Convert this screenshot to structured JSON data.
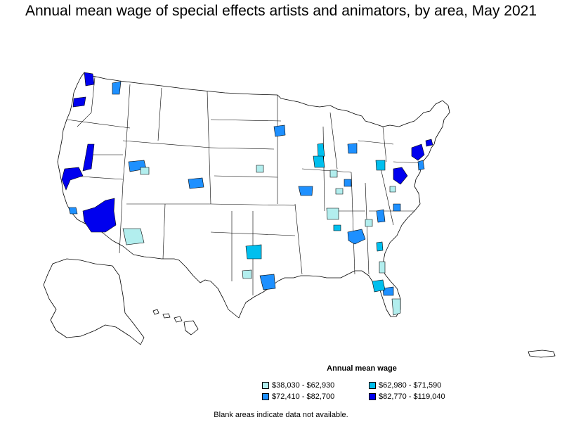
{
  "title": "Annual mean wage of special effects artists and animators, by area, May 2021",
  "legend": {
    "title": "Annual mean wage",
    "items": [
      {
        "label": "$38,030 - $62,930",
        "color": "#b2eeee"
      },
      {
        "label": "$62,980 - $71,590",
        "color": "#00bfee"
      },
      {
        "label": "$72,410 - $82,700",
        "color": "#1e90ff"
      },
      {
        "label": "$82,770 - $119,040",
        "color": "#0000ee"
      }
    ]
  },
  "footnote": "Blank areas indicate data not available.",
  "colors": {
    "boundary": "#000000",
    "blank": "#ffffff"
  }
}
